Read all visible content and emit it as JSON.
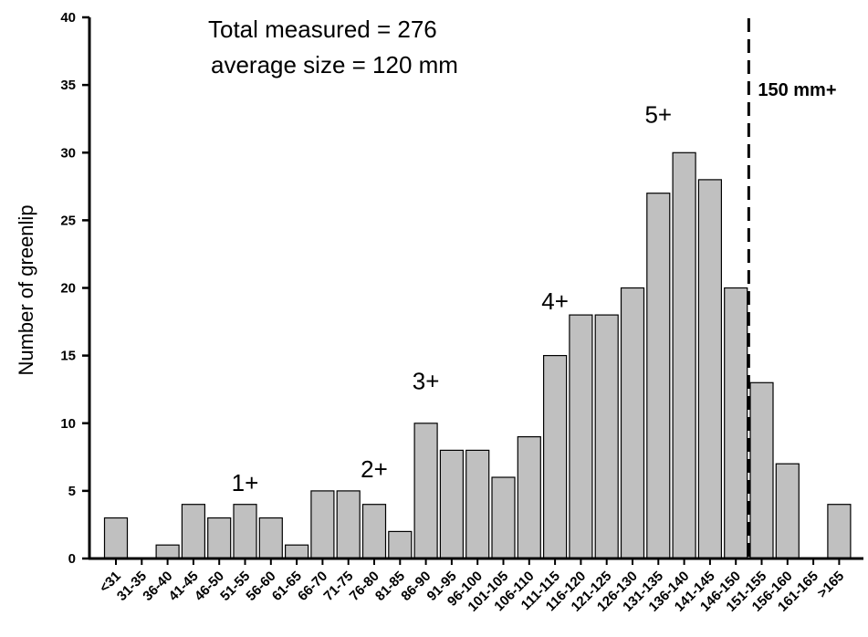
{
  "chart_data": {
    "type": "bar",
    "ylabel": "Number of greenlip",
    "xlabel": "",
    "ylim": [
      0,
      40
    ],
    "yticks": [
      0,
      5,
      10,
      15,
      20,
      25,
      30,
      35,
      40
    ],
    "categories": [
      "<31",
      "31-35",
      "36-40",
      "41-45",
      "46-50",
      "51-55",
      "56-60",
      "61-65",
      "66-70",
      "71-75",
      "76-80",
      "81-85",
      "86-90",
      "91-95",
      "96-100",
      "101-105",
      "106-110",
      "111-115",
      "116-120",
      "121-125",
      "126-130",
      "131-135",
      "136-140",
      "141-145",
      "146-150",
      "151-155",
      "156-160",
      "161-165",
      ">165"
    ],
    "values": [
      3,
      0,
      1,
      4,
      3,
      4,
      3,
      1,
      5,
      5,
      4,
      2,
      10,
      8,
      8,
      6,
      9,
      15,
      18,
      18,
      20,
      27,
      30,
      28,
      20,
      13,
      7,
      0,
      4
    ],
    "bar_color": "#c0c0c0",
    "annotations": {
      "total": "Total measured = 276",
      "average": "average size = 120 mm"
    },
    "age_labels": [
      {
        "text": "1+",
        "category": "51-55",
        "y": 5
      },
      {
        "text": "2+",
        "category": "76-80",
        "y": 6
      },
      {
        "text": "3+",
        "category": "86-90",
        "y": 12.5
      },
      {
        "text": "4+",
        "category": "111-115",
        "y": 18.4
      },
      {
        "text": "5+",
        "category": "131-135",
        "y": 32.2
      }
    ],
    "reference_line": {
      "label": "150 mm+",
      "between": [
        "146-150",
        "151-155"
      ],
      "style": "dashed"
    }
  }
}
